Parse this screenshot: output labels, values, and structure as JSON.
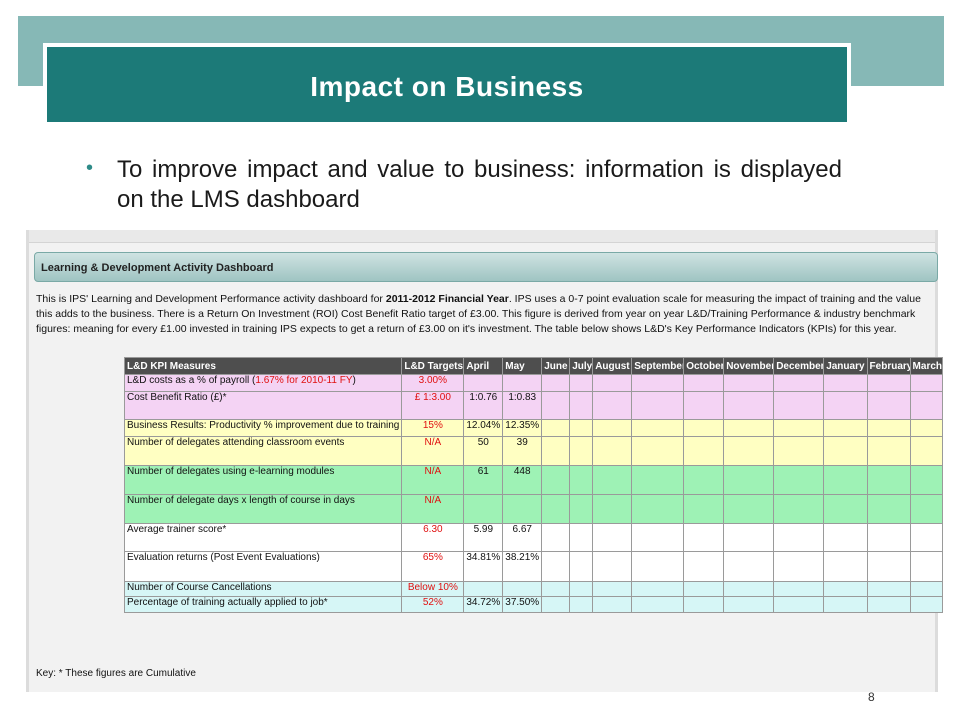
{
  "slide": {
    "title": "Impact on Business",
    "bullet_marker": "•",
    "bullet": "To improve impact and value to business: information is displayed on the LMS dashboard",
    "page_number": "8"
  },
  "dashboard": {
    "panel_title": "Learning & Development Activity Dashboard",
    "intro_before": "This is IPS' Learning and Development Performance activity dashboard for ",
    "intro_bold": "2011-2012 Financial Year",
    "intro_after": ". IPS uses a 0-7 point evaluation scale for measuring the impact of training and the value this adds to the business. There is a Return On Investment (ROI) Cost Benefit Ratio target of £3.00. This figure is derived from year on year L&D/Training Performance & industry benchmark figures: meaning for every £1.00 invested in training IPS expects to get a return of £3.00 on it's investment.  The table below shows L&D's Key Performance Indicators (KPIs) for this year.",
    "key": "Key: * These figures are Cumulative",
    "columns": [
      "L&D KPI Measures",
      "L&D Targets",
      "April",
      "May",
      "June",
      "July",
      "August",
      "September",
      "October",
      "November",
      "December",
      "January",
      "February",
      "March"
    ],
    "row_colors": {
      "pink": "#f4d3f4",
      "yellow": "#ffffc2",
      "green": "#9ef2b5",
      "white": "#ffffff",
      "cyan": "#d6f6f6"
    },
    "rows": [
      {
        "measure": "L&D costs as a % of payroll (",
        "measure_red": "1.67% for 2010-11 FY",
        "measure_tail": ")",
        "target": "3.00%",
        "april": "",
        "may": "",
        "color": "pink"
      },
      {
        "measure": "Cost Benefit Ratio (£)*",
        "measure_red": "",
        "measure_tail": "",
        "target": "£ 1:3.00",
        "april": "1:0.76",
        "may": "1:0.83",
        "color": "pink"
      },
      {
        "measure": "Business Results: Productivity % improvement due to training",
        "measure_red": "",
        "measure_tail": "",
        "target": "15%",
        "april": "12.04%",
        "may": "12.35%",
        "color": "yellow"
      },
      {
        "measure": "Number of delegates attending classroom events",
        "measure_red": "",
        "measure_tail": "",
        "target": "N/A",
        "april": "50",
        "may": "39",
        "color": "yellow"
      },
      {
        "measure": "Number of delegates using e-learning modules",
        "measure_red": "",
        "measure_tail": "",
        "target": "N/A",
        "april": "61",
        "may": "448",
        "color": "green"
      },
      {
        "measure": "Number of delegate days x length of course in days",
        "measure_red": "",
        "measure_tail": "",
        "target": "N/A",
        "april": "",
        "may": "",
        "color": "green"
      },
      {
        "measure": "Average trainer score*",
        "measure_red": "",
        "measure_tail": "",
        "target": "6.30",
        "april": "5.99",
        "may": "6.67",
        "color": "white"
      },
      {
        "measure": "Evaluation returns (Post Event Evaluations)",
        "measure_red": "",
        "measure_tail": "",
        "target": "65%",
        "april": "34.81%",
        "may": "38.21%",
        "color": "white"
      },
      {
        "measure": "Number of Course Cancellations",
        "measure_red": "",
        "measure_tail": "",
        "target": "Below 10%",
        "april": "",
        "may": "",
        "color": "cyan"
      },
      {
        "measure": "Percentage of training actually applied to job*",
        "measure_red": "",
        "measure_tail": "",
        "target": "52%",
        "april": "34.72%",
        "may": "37.50%",
        "color": "cyan"
      }
    ]
  }
}
